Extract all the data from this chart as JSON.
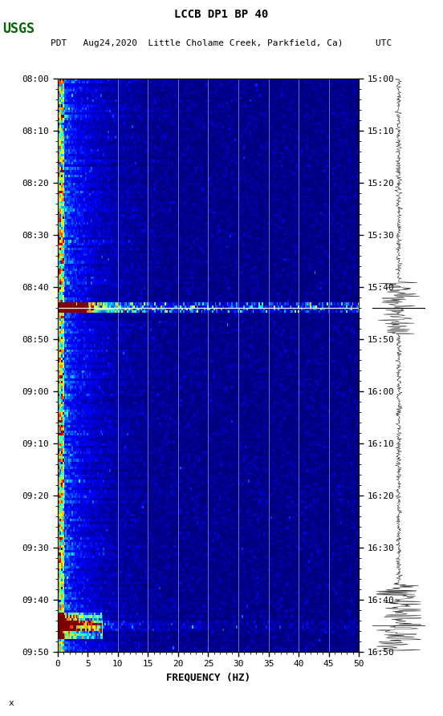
{
  "title_line1": "LCCB DP1 BP 40",
  "title_line2": "PDT   Aug24,2020  Little Cholame Creek, Parkfield, Ca)      UTC",
  "xlabel": "FREQUENCY (HZ)",
  "freq_min": 0,
  "freq_max": 50,
  "left_yticks": [
    "08:00",
    "08:10",
    "08:20",
    "08:30",
    "08:40",
    "08:50",
    "09:00",
    "09:10",
    "09:20",
    "09:30",
    "09:40",
    "09:50"
  ],
  "right_yticks": [
    "15:00",
    "15:10",
    "15:20",
    "15:30",
    "15:40",
    "15:50",
    "16:00",
    "16:10",
    "16:20",
    "16:30",
    "16:40",
    "16:50"
  ],
  "xticks": [
    0,
    5,
    10,
    15,
    20,
    25,
    30,
    35,
    40,
    45,
    50
  ],
  "grid_freqs": [
    10,
    15,
    20,
    25,
    30,
    35,
    40,
    45
  ],
  "hline_row": 88,
  "n_time": 220,
  "n_freq": 200,
  "fig_width": 5.52,
  "fig_height": 8.93
}
